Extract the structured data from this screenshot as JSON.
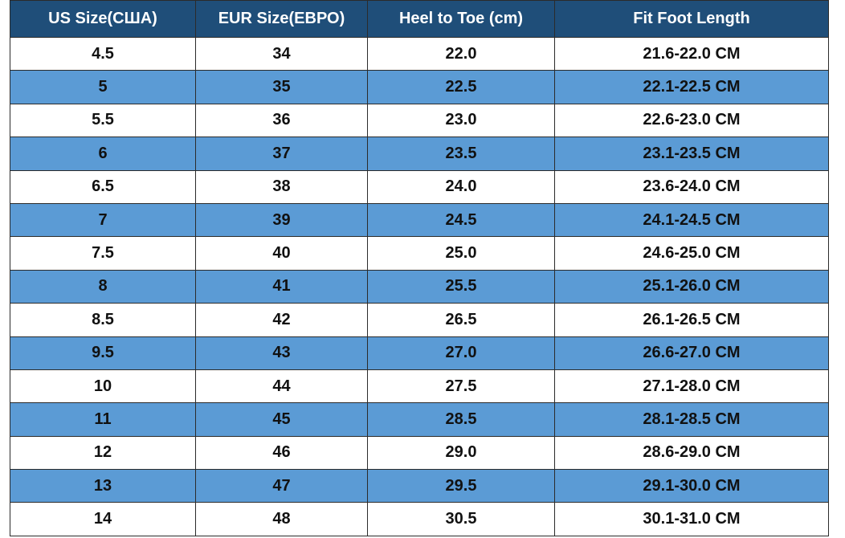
{
  "table": {
    "header": [
      "US Size(США)",
      "EUR Size(ЕВРО)",
      "Heel to Toe (cm)",
      "Fit Foot Length"
    ],
    "rows": [
      [
        "4.5",
        "34",
        "22.0",
        "21.6-22.0 CM"
      ],
      [
        "5",
        "35",
        "22.5",
        "22.1-22.5 CM"
      ],
      [
        "5.5",
        "36",
        "23.0",
        "22.6-23.0 CM"
      ],
      [
        "6",
        "37",
        "23.5",
        "23.1-23.5 CM"
      ],
      [
        "6.5",
        "38",
        "24.0",
        "23.6-24.0 CM"
      ],
      [
        "7",
        "39",
        "24.5",
        "24.1-24.5 CM"
      ],
      [
        "7.5",
        "40",
        "25.0",
        "24.6-25.0 CM"
      ],
      [
        "8",
        "41",
        "25.5",
        "25.1-26.0 CM"
      ],
      [
        "8.5",
        "42",
        "26.5",
        "26.1-26.5 CM"
      ],
      [
        "9.5",
        "43",
        "27.0",
        "26.6-27.0 CM"
      ],
      [
        "10",
        "44",
        "27.5",
        "27.1-28.0 CM"
      ],
      [
        "11",
        "45",
        "28.5",
        "28.1-28.5 CM"
      ],
      [
        "12",
        "46",
        "29.0",
        "28.6-29.0 CM"
      ],
      [
        "13",
        "47",
        "29.5",
        "29.1-30.0 CM"
      ],
      [
        "14",
        "48",
        "30.5",
        "30.1-31.0 CM"
      ]
    ]
  }
}
